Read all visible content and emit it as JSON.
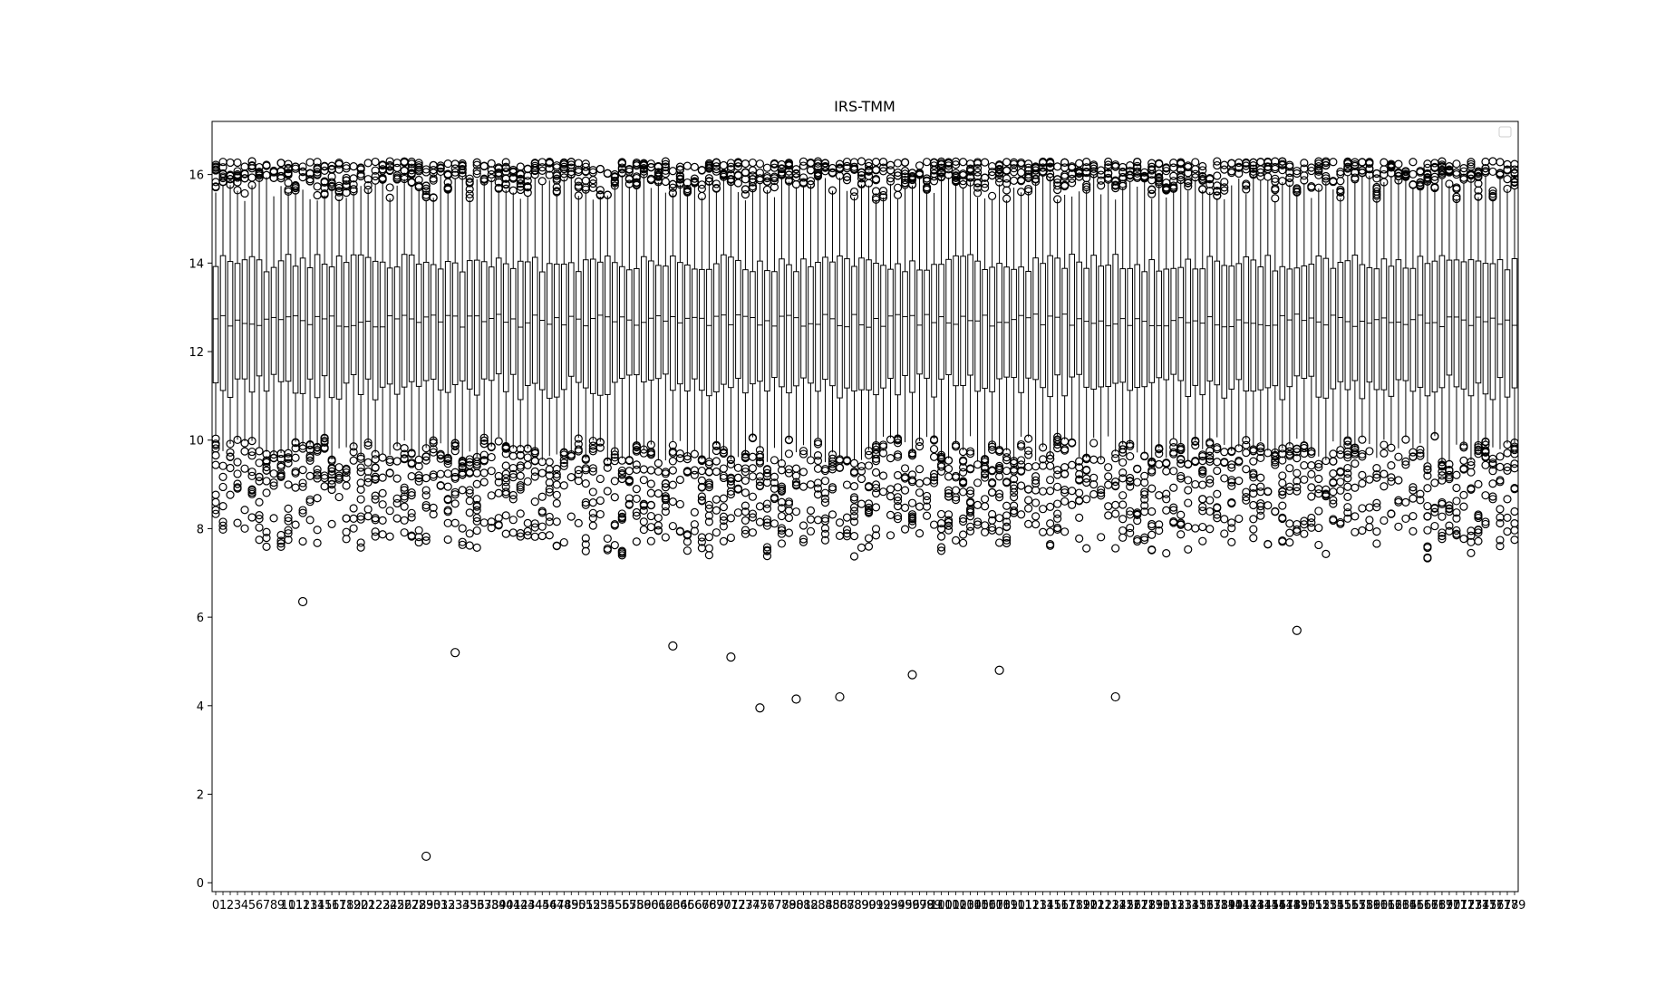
{
  "chart_data": {
    "type": "boxplot",
    "title": "IRS-TMM",
    "xlabel": "",
    "ylabel": "",
    "ylim": [
      -0.2,
      17.2
    ],
    "yticks": [
      0,
      2,
      4,
      6,
      8,
      10,
      12,
      14,
      16
    ],
    "n_boxes": 180,
    "x_tick_labels": "0 … 179",
    "grid": false,
    "legend": "top-right (empty)",
    "summary": {
      "q1_typical": 11.2,
      "median_typical": 12.7,
      "q3_typical": 14.0,
      "whisker_low_typical": 9.8,
      "whisker_high_typical": 16.0,
      "overall_min_outlier": 0.6
    },
    "notable_outliers": [
      {
        "box": 29,
        "value": 0.6
      },
      {
        "box": 75,
        "value": 3.95
      },
      {
        "box": 86,
        "value": 4.2
      },
      {
        "box": 80,
        "value": 4.15
      },
      {
        "box": 96,
        "value": 4.7
      },
      {
        "box": 124,
        "value": 4.2
      },
      {
        "box": 33,
        "value": 5.2
      },
      {
        "box": 63,
        "value": 5.35
      },
      {
        "box": 71,
        "value": 5.1
      },
      {
        "box": 108,
        "value": 4.8
      },
      {
        "box": 149,
        "value": 5.7
      },
      {
        "box": 12,
        "value": 6.35
      }
    ],
    "colors": {
      "stroke": "#000000",
      "background": "#ffffff"
    }
  }
}
